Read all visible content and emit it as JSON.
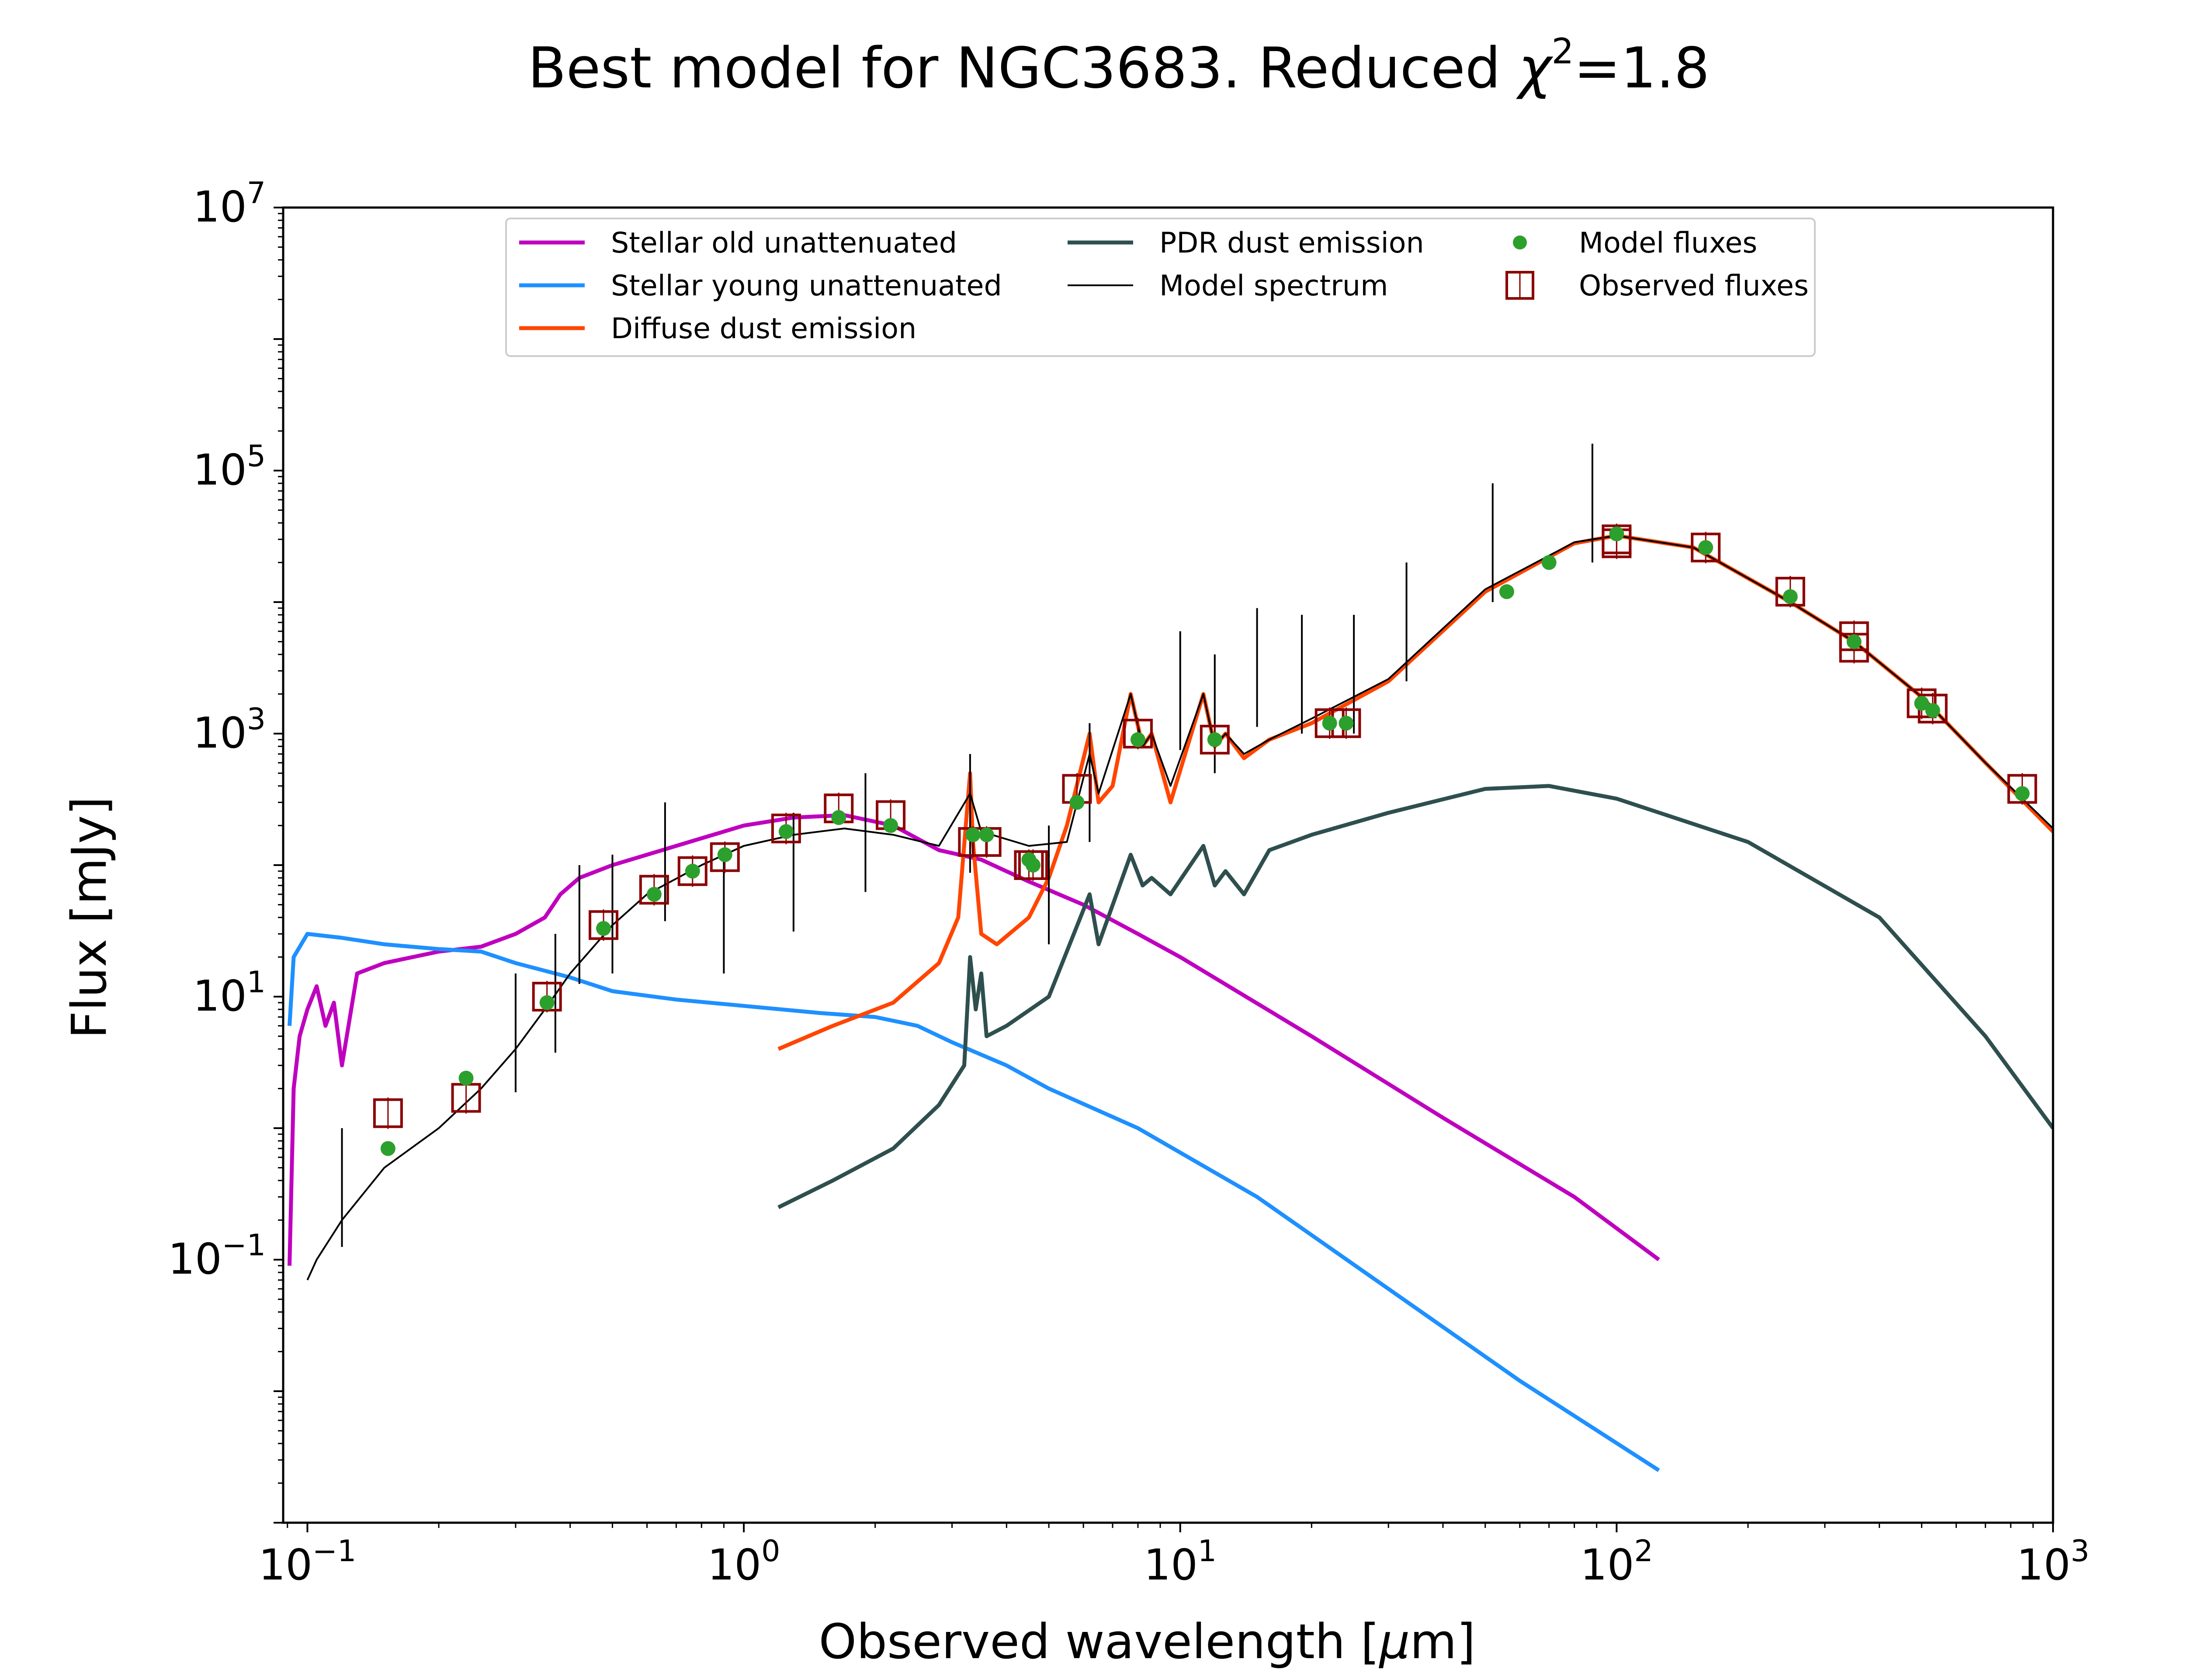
{
  "chart_data": {
    "type": "line",
    "title": "Best model for NGC3683. Reduced χ²=1.8",
    "title_parts": {
      "prefix": "Best model for NGC3683. Reduced ",
      "chi": "χ",
      "sup": "2",
      "suffix": "=1.8"
    },
    "xlabel": "Observed wavelength [μm]",
    "xlabel_parts": {
      "prefix": "Observed wavelength [",
      "unit": "μ",
      "suffix": "m]"
    },
    "ylabel": "Flux [mJy]",
    "xscale": "log",
    "yscale": "log",
    "xlim": [
      0.088,
      1000
    ],
    "ylim": [
      0.001,
      10000000
    ],
    "x_ticks": [
      {
        "value": 0.1,
        "base": "10",
        "exp": "−1"
      },
      {
        "value": 1,
        "base": "10",
        "exp": "0"
      },
      {
        "value": 10,
        "base": "10",
        "exp": "1"
      },
      {
        "value": 100,
        "base": "10",
        "exp": "2"
      },
      {
        "value": 1000,
        "base": "10",
        "exp": "3"
      }
    ],
    "y_ticks": [
      {
        "value": 0.1,
        "base": "10",
        "exp": "−1"
      },
      {
        "value": 10,
        "base": "10",
        "exp": "1"
      },
      {
        "value": 1000,
        "base": "10",
        "exp": "3"
      },
      {
        "value": 100000,
        "base": "10",
        "exp": "5"
      },
      {
        "value": 10000000,
        "base": "10",
        "exp": "7"
      }
    ],
    "grid": false,
    "legend_position": "top-center",
    "legend": [
      {
        "label": "Stellar old unattenuated",
        "kind": "line",
        "color": "#bf00bf"
      },
      {
        "label": "Stellar young unattenuated",
        "kind": "line",
        "color": "#1e90ff"
      },
      {
        "label": "Diffuse dust emission",
        "kind": "line",
        "color": "#ff4500"
      },
      {
        "label": "PDR dust emission",
        "kind": "line",
        "color": "#2f4f4f"
      },
      {
        "label": "Model spectrum",
        "kind": "thinline",
        "color": "#000000"
      },
      {
        "label": "Model fluxes",
        "kind": "dot",
        "color": "#2ca02c"
      },
      {
        "label": "Observed fluxes",
        "kind": "square",
        "color": "#8b0000"
      }
    ],
    "series": [
      {
        "name": "Stellar old unattenuated",
        "color": "#bf00bf",
        "points": [
          [
            0.091,
            0.09
          ],
          [
            0.093,
            2
          ],
          [
            0.096,
            5
          ],
          [
            0.1,
            8
          ],
          [
            0.105,
            12
          ],
          [
            0.11,
            6
          ],
          [
            0.115,
            9
          ],
          [
            0.12,
            3
          ],
          [
            0.13,
            15
          ],
          [
            0.15,
            18
          ],
          [
            0.2,
            22
          ],
          [
            0.25,
            24
          ],
          [
            0.3,
            30
          ],
          [
            0.35,
            40
          ],
          [
            0.38,
            60
          ],
          [
            0.42,
            80
          ],
          [
            0.5,
            100
          ],
          [
            0.6,
            120
          ],
          [
            0.8,
            160
          ],
          [
            1.0,
            200
          ],
          [
            1.3,
            230
          ],
          [
            1.7,
            240
          ],
          [
            2.2,
            200
          ],
          [
            2.8,
            130
          ],
          [
            3.5,
            110
          ],
          [
            4.5,
            75
          ],
          [
            6,
            50
          ],
          [
            8,
            30
          ],
          [
            10,
            20
          ],
          [
            20,
            5
          ],
          [
            40,
            1.2
          ],
          [
            80,
            0.3
          ],
          [
            125,
            0.1
          ]
        ]
      },
      {
        "name": "Stellar young unattenuated",
        "color": "#1e90ff",
        "points": [
          [
            0.091,
            6
          ],
          [
            0.093,
            20
          ],
          [
            0.1,
            30
          ],
          [
            0.12,
            28
          ],
          [
            0.15,
            25
          ],
          [
            0.2,
            23
          ],
          [
            0.25,
            22
          ],
          [
            0.3,
            18
          ],
          [
            0.4,
            14
          ],
          [
            0.5,
            11
          ],
          [
            0.7,
            9.5
          ],
          [
            1.0,
            8.5
          ],
          [
            1.5,
            7.5
          ],
          [
            2.0,
            7
          ],
          [
            2.5,
            6
          ],
          [
            3.0,
            4.5
          ],
          [
            4.0,
            3
          ],
          [
            5,
            2
          ],
          [
            8,
            1
          ],
          [
            15,
            0.3
          ],
          [
            30,
            0.06
          ],
          [
            60,
            0.012
          ],
          [
            125,
            0.0025
          ]
        ]
      },
      {
        "name": "Diffuse dust emission",
        "color": "#ff4500",
        "points": [
          [
            1.2,
            4
          ],
          [
            1.6,
            6
          ],
          [
            2.2,
            9
          ],
          [
            2.8,
            18
          ],
          [
            3.1,
            40
          ],
          [
            3.3,
            500
          ],
          [
            3.35,
            150
          ],
          [
            3.5,
            30
          ],
          [
            3.8,
            25
          ],
          [
            4.5,
            40
          ],
          [
            5,
            80
          ],
          [
            5.5,
            200
          ],
          [
            6.2,
            1000
          ],
          [
            6.5,
            300
          ],
          [
            7,
            400
          ],
          [
            7.7,
            2000
          ],
          [
            8.2,
            800
          ],
          [
            8.6,
            1000
          ],
          [
            9.5,
            300
          ],
          [
            11.3,
            2000
          ],
          [
            12,
            800
          ],
          [
            12.7,
            1000
          ],
          [
            14,
            650
          ],
          [
            16,
            900
          ],
          [
            20,
            1200
          ],
          [
            30,
            2500
          ],
          [
            50,
            12000
          ],
          [
            80,
            28000
          ],
          [
            100,
            32000
          ],
          [
            150,
            26000
          ],
          [
            250,
            10000
          ],
          [
            350,
            5000
          ],
          [
            500,
            1900
          ],
          [
            700,
            600
          ],
          [
            1000,
            180
          ]
        ]
      },
      {
        "name": "PDR dust emission",
        "color": "#2f4f4f",
        "points": [
          [
            1.2,
            0.25
          ],
          [
            1.6,
            0.4
          ],
          [
            2.2,
            0.7
          ],
          [
            2.8,
            1.5
          ],
          [
            3.2,
            3
          ],
          [
            3.3,
            20
          ],
          [
            3.4,
            8
          ],
          [
            3.5,
            15
          ],
          [
            3.6,
            5
          ],
          [
            4.0,
            6
          ],
          [
            5,
            10
          ],
          [
            6.2,
            60
          ],
          [
            6.5,
            25
          ],
          [
            7.7,
            120
          ],
          [
            8.2,
            70
          ],
          [
            8.6,
            80
          ],
          [
            9.5,
            60
          ],
          [
            11.3,
            140
          ],
          [
            12,
            70
          ],
          [
            12.7,
            90
          ],
          [
            14,
            60
          ],
          [
            16,
            130
          ],
          [
            20,
            170
          ],
          [
            30,
            250
          ],
          [
            50,
            380
          ],
          [
            70,
            400
          ],
          [
            100,
            320
          ],
          [
            200,
            150
          ],
          [
            400,
            40
          ],
          [
            700,
            5
          ],
          [
            1000,
            1
          ]
        ]
      },
      {
        "name": "Model spectrum",
        "color": "#000000",
        "points": [
          [
            0.1,
            0.07
          ],
          [
            0.105,
            0.1
          ],
          [
            0.12,
            0.2
          ],
          [
            0.15,
            0.5
          ],
          [
            0.2,
            1
          ],
          [
            0.25,
            2
          ],
          [
            0.3,
            4
          ],
          [
            0.35,
            8
          ],
          [
            0.4,
            15
          ],
          [
            0.5,
            35
          ],
          [
            0.6,
            60
          ],
          [
            0.8,
            100
          ],
          [
            1.0,
            140
          ],
          [
            1.3,
            170
          ],
          [
            1.7,
            190
          ],
          [
            2.2,
            170
          ],
          [
            2.8,
            140
          ],
          [
            3.3,
            350
          ],
          [
            3.5,
            180
          ],
          [
            4.5,
            140
          ],
          [
            5.5,
            150
          ],
          [
            6.2,
            700
          ],
          [
            6.5,
            350
          ],
          [
            7.7,
            2000
          ],
          [
            8.2,
            800
          ],
          [
            8.6,
            1000
          ],
          [
            9.5,
            400
          ],
          [
            11.3,
            2000
          ],
          [
            12,
            800
          ],
          [
            12.7,
            1000
          ],
          [
            14,
            700
          ],
          [
            16,
            900
          ],
          [
            20,
            1300
          ],
          [
            30,
            2600
          ],
          [
            50,
            12500
          ],
          [
            80,
            28500
          ],
          [
            100,
            32000
          ],
          [
            150,
            26000
          ],
          [
            250,
            10000
          ],
          [
            350,
            5000
          ],
          [
            500,
            1900
          ],
          [
            700,
            600
          ],
          [
            1000,
            190
          ]
        ],
        "spikes": [
          [
            0.12,
            1.0
          ],
          [
            0.3,
            15
          ],
          [
            0.37,
            30
          ],
          [
            0.42,
            100
          ],
          [
            0.5,
            120
          ],
          [
            0.66,
            300
          ],
          [
            0.9,
            120
          ],
          [
            1.3,
            250
          ],
          [
            1.9,
            500
          ],
          [
            3.3,
            700
          ],
          [
            5.0,
            200
          ],
          [
            6.2,
            1200
          ],
          [
            10,
            6000
          ],
          [
            12,
            4000
          ],
          [
            15,
            9000
          ],
          [
            19,
            8000
          ],
          [
            25,
            8000
          ],
          [
            33,
            20000
          ],
          [
            52,
            80000
          ],
          [
            88,
            160000
          ]
        ]
      }
    ],
    "model_fluxes": [
      [
        0.153,
        0.7
      ],
      [
        0.231,
        2.4
      ],
      [
        0.354,
        9
      ],
      [
        0.477,
        33
      ],
      [
        0.623,
        60
      ],
      [
        0.763,
        90
      ],
      [
        0.905,
        120
      ],
      [
        1.25,
        180
      ],
      [
        1.65,
        230
      ],
      [
        2.17,
        200
      ],
      [
        3.35,
        170
      ],
      [
        3.6,
        170
      ],
      [
        4.5,
        110
      ],
      [
        4.6,
        100
      ],
      [
        5.8,
        300
      ],
      [
        8.0,
        900
      ],
      [
        12,
        900
      ],
      [
        22,
        1200
      ],
      [
        24,
        1200
      ],
      [
        56,
        12000
      ],
      [
        70,
        20000
      ],
      [
        100,
        33000
      ],
      [
        160,
        26000
      ],
      [
        250,
        11000
      ],
      [
        350,
        5000
      ],
      [
        500,
        1700
      ],
      [
        530,
        1500
      ],
      [
        850,
        350
      ]
    ],
    "observed_fluxes": [
      [
        0.153,
        1.3
      ],
      [
        0.231,
        1.7
      ],
      [
        0.354,
        10
      ],
      [
        0.477,
        35
      ],
      [
        0.623,
        65
      ],
      [
        0.763,
        90
      ],
      [
        0.905,
        115
      ],
      [
        1.25,
        190
      ],
      [
        1.65,
        270
      ],
      [
        2.17,
        240
      ],
      [
        3.35,
        150
      ],
      [
        3.6,
        150
      ],
      [
        4.5,
        100
      ],
      [
        4.6,
        100
      ],
      [
        5.8,
        380
      ],
      [
        8.0,
        1000
      ],
      [
        12,
        900
      ],
      [
        22,
        1200
      ],
      [
        24,
        1200
      ],
      [
        100,
        30000
      ],
      [
        100,
        28000
      ],
      [
        160,
        26000
      ],
      [
        250,
        12000
      ],
      [
        350,
        5500
      ],
      [
        350,
        4500
      ],
      [
        500,
        1700
      ],
      [
        530,
        1550
      ],
      [
        850,
        380
      ]
    ]
  }
}
